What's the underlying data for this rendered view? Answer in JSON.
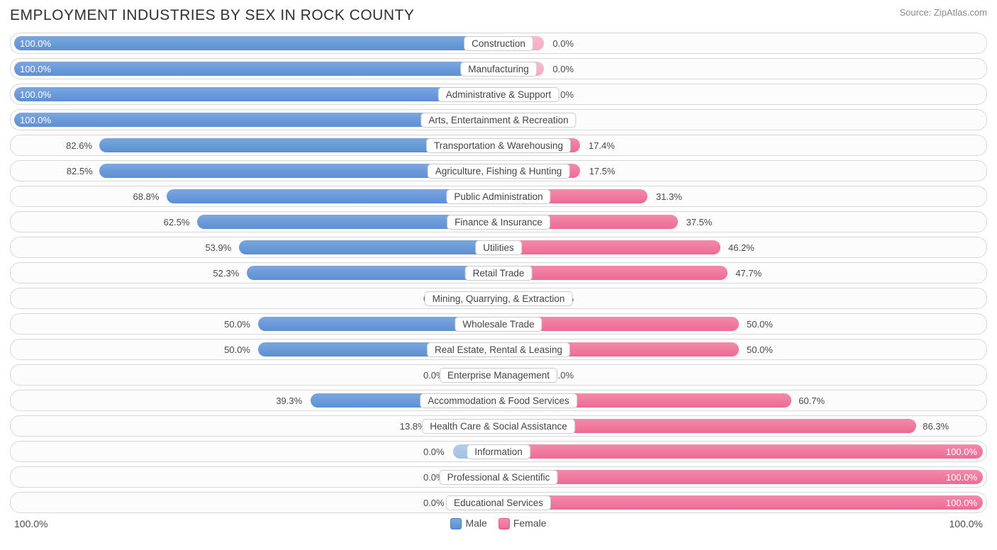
{
  "title": "EMPLOYMENT INDUSTRIES BY SEX IN ROCK COUNTY",
  "source": "Source: ZipAtlas.com",
  "axis": {
    "left": "100.0%",
    "right": "100.0%"
  },
  "legend": {
    "male": "Male",
    "female": "Female"
  },
  "style": {
    "male_color": "#5d8fd4",
    "female_color": "#ee6a94",
    "male_dim_color": "#a2bfe6",
    "female_dim_color": "#f4abc3",
    "track_border": "#d8d8d8",
    "track_bg": "#fcfcfc",
    "text_color": "#4a4a4a",
    "zero_stub_pct": 10
  },
  "rows": [
    {
      "label": "Construction",
      "male": 100.0,
      "female": 0.0,
      "male_txt": "100.0%",
      "female_txt": "0.0%",
      "zero": false
    },
    {
      "label": "Manufacturing",
      "male": 100.0,
      "female": 0.0,
      "male_txt": "100.0%",
      "female_txt": "0.0%",
      "zero": false
    },
    {
      "label": "Administrative & Support",
      "male": 100.0,
      "female": 0.0,
      "male_txt": "100.0%",
      "female_txt": "0.0%",
      "zero": false
    },
    {
      "label": "Arts, Entertainment & Recreation",
      "male": 100.0,
      "female": 0.0,
      "male_txt": "100.0%",
      "female_txt": "0.0%",
      "zero": false
    },
    {
      "label": "Transportation & Warehousing",
      "male": 82.6,
      "female": 17.4,
      "male_txt": "82.6%",
      "female_txt": "17.4%",
      "zero": false
    },
    {
      "label": "Agriculture, Fishing & Hunting",
      "male": 82.5,
      "female": 17.5,
      "male_txt": "82.5%",
      "female_txt": "17.5%",
      "zero": false
    },
    {
      "label": "Public Administration",
      "male": 68.8,
      "female": 31.3,
      "male_txt": "68.8%",
      "female_txt": "31.3%",
      "zero": false
    },
    {
      "label": "Finance & Insurance",
      "male": 62.5,
      "female": 37.5,
      "male_txt": "62.5%",
      "female_txt": "37.5%",
      "zero": false
    },
    {
      "label": "Utilities",
      "male": 53.9,
      "female": 46.2,
      "male_txt": "53.9%",
      "female_txt": "46.2%",
      "zero": false
    },
    {
      "label": "Retail Trade",
      "male": 52.3,
      "female": 47.7,
      "male_txt": "52.3%",
      "female_txt": "47.7%",
      "zero": false
    },
    {
      "label": "Mining, Quarrying, & Extraction",
      "male": 0.0,
      "female": 0.0,
      "male_txt": "0.0%",
      "female_txt": "0.0%",
      "zero": true
    },
    {
      "label": "Wholesale Trade",
      "male": 50.0,
      "female": 50.0,
      "male_txt": "50.0%",
      "female_txt": "50.0%",
      "zero": false
    },
    {
      "label": "Real Estate, Rental & Leasing",
      "male": 50.0,
      "female": 50.0,
      "male_txt": "50.0%",
      "female_txt": "50.0%",
      "zero": false
    },
    {
      "label": "Enterprise Management",
      "male": 0.0,
      "female": 0.0,
      "male_txt": "0.0%",
      "female_txt": "0.0%",
      "zero": true
    },
    {
      "label": "Accommodation & Food Services",
      "male": 39.3,
      "female": 60.7,
      "male_txt": "39.3%",
      "female_txt": "60.7%",
      "zero": false
    },
    {
      "label": "Health Care & Social Assistance",
      "male": 13.8,
      "female": 86.3,
      "male_txt": "13.8%",
      "female_txt": "86.3%",
      "zero": false
    },
    {
      "label": "Information",
      "male": 0.0,
      "female": 100.0,
      "male_txt": "0.0%",
      "female_txt": "100.0%",
      "zero": false
    },
    {
      "label": "Professional & Scientific",
      "male": 0.0,
      "female": 100.0,
      "male_txt": "0.0%",
      "female_txt": "100.0%",
      "zero": false
    },
    {
      "label": "Educational Services",
      "male": 0.0,
      "female": 100.0,
      "male_txt": "0.0%",
      "female_txt": "100.0%",
      "zero": false
    }
  ]
}
